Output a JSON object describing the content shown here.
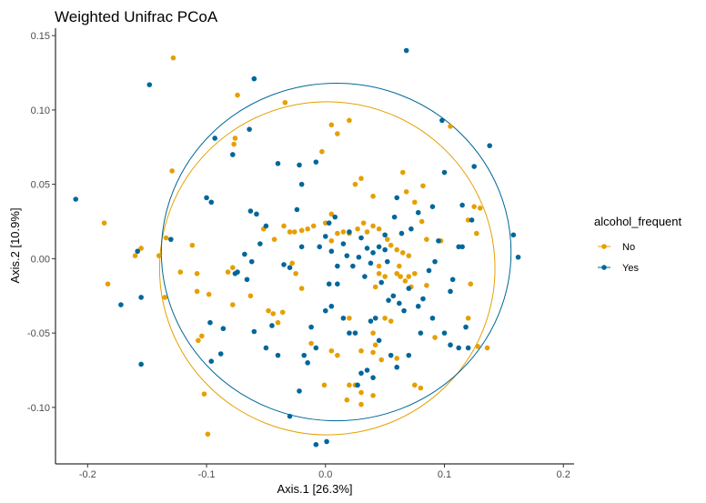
{
  "chart_data": {
    "type": "scatter",
    "title": "Weighted Unifrac PCoA",
    "xlabel": "Axis.1 [26.3%]",
    "ylabel": "Axis.2 [10.9%]",
    "xlim": [
      -0.227,
      0.209
    ],
    "ylim": [
      -0.138,
      0.155
    ],
    "xticks": [
      -0.2,
      -0.1,
      0.0,
      0.1,
      0.2
    ],
    "xtick_labels": [
      "-0.2",
      "-0.1",
      "0.0",
      "0.1",
      "0.2"
    ],
    "yticks": [
      -0.1,
      -0.05,
      0.0,
      0.05,
      0.1,
      0.15
    ],
    "ytick_labels": [
      "-0.10",
      "-0.05",
      "0.00",
      "0.05",
      "0.10",
      "0.15"
    ],
    "grid": false,
    "legend": {
      "title": "alcohol_frequent",
      "position": "right"
    },
    "series": [
      {
        "name": "No",
        "color": "#E69F00",
        "ellipse": {
          "cx": 0.0015,
          "cy": -0.0065,
          "rx": 0.141,
          "ry": 0.112
        },
        "points": [
          [
            -0.128,
            0.135
          ],
          [
            -0.074,
            0.11
          ],
          [
            -0.112,
            0.009
          ],
          [
            -0.183,
            -0.017
          ],
          [
            -0.186,
            0.024
          ],
          [
            -0.129,
            0.059
          ],
          [
            -0.076,
            0.081
          ],
          [
            -0.077,
            0.077
          ],
          [
            -0.034,
            0.105
          ],
          [
            -0.122,
            -0.009
          ],
          [
            -0.108,
            -0.01
          ],
          [
            -0.108,
            -0.022
          ],
          [
            -0.098,
            -0.024
          ],
          [
            -0.104,
            -0.052
          ],
          [
            -0.16,
            0.002
          ],
          [
            -0.155,
            0.007
          ],
          [
            -0.14,
            0.002
          ],
          [
            -0.134,
            0.014
          ],
          [
            -0.135,
            -0.026
          ],
          [
            -0.107,
            -0.055
          ],
          [
            -0.102,
            -0.091
          ],
          [
            -0.099,
            -0.118
          ],
          [
            -0.078,
            -0.006
          ],
          [
            -0.082,
            -0.009
          ],
          [
            -0.078,
            -0.031
          ],
          [
            -0.063,
            -0.025
          ],
          [
            -0.052,
            0.02
          ],
          [
            -0.043,
            0.013
          ],
          [
            -0.035,
            0.022
          ],
          [
            -0.03,
            0.018
          ],
          [
            -0.026,
            0.018
          ],
          [
            -0.02,
            0.019
          ],
          [
            -0.015,
            0.02
          ],
          [
            -0.01,
            0.022
          ],
          [
            0.005,
            0.03
          ],
          [
            0.0,
            0.024
          ],
          [
            -0.028,
            -0.003
          ],
          [
            -0.025,
            -0.01
          ],
          [
            -0.02,
            -0.02
          ],
          [
            -0.048,
            -0.035
          ],
          [
            -0.044,
            -0.037
          ],
          [
            -0.036,
            -0.036
          ],
          [
            -0.04,
            -0.043
          ],
          [
            -0.012,
            -0.057
          ],
          [
            0.005,
            -0.062
          ],
          [
            0.01,
            -0.065
          ],
          [
            0.02,
            -0.04
          ],
          [
            0.025,
            -0.085
          ],
          [
            0.02,
            -0.085
          ],
          [
            0.03,
            -0.062
          ],
          [
            -0.001,
            -0.085
          ],
          [
            0.03,
            -0.09
          ],
          [
            0.018,
            -0.095
          ],
          [
            0.03,
            -0.098
          ],
          [
            0.04,
            -0.092
          ],
          [
            0.04,
            -0.063
          ],
          [
            0.047,
            -0.068
          ],
          [
            0.042,
            -0.058
          ],
          [
            0.005,
            0.09
          ],
          [
            0.01,
            0.084
          ],
          [
            -0.003,
            0.072
          ],
          [
            0.02,
            0.093
          ],
          [
            0.005,
            0.012
          ],
          [
            0.01,
            0.017
          ],
          [
            0.015,
            0.018
          ],
          [
            0.02,
            0.017
          ],
          [
            0.027,
            0.02
          ],
          [
            0.032,
            0.024
          ],
          [
            0.035,
            0.018
          ],
          [
            0.04,
            0.022
          ],
          [
            0.045,
            0.02
          ],
          [
            0.052,
            0.013
          ],
          [
            0.055,
            0.009
          ],
          [
            0.06,
            0.006
          ],
          [
            0.065,
            0.004
          ],
          [
            0.07,
            0.002
          ],
          [
            0.062,
            -0.005
          ],
          [
            0.06,
            -0.01
          ],
          [
            0.063,
            -0.012
          ],
          [
            0.067,
            -0.015
          ],
          [
            0.07,
            -0.012
          ],
          [
            0.072,
            -0.019
          ],
          [
            0.075,
            -0.01
          ],
          [
            0.05,
            -0.04
          ],
          [
            0.055,
            -0.042
          ],
          [
            0.04,
            -0.05
          ],
          [
            0.06,
            -0.067
          ],
          [
            0.075,
            -0.085
          ],
          [
            0.08,
            -0.087
          ],
          [
            0.092,
            -0.053
          ],
          [
            0.085,
            -0.018
          ],
          [
            0.03,
            0.054
          ],
          [
            0.025,
            0.05
          ],
          [
            0.04,
            0.042
          ],
          [
            0.065,
            0.058
          ],
          [
            0.068,
            0.045
          ],
          [
            0.075,
            0.038
          ],
          [
            0.082,
            0.049
          ],
          [
            0.085,
            0.013
          ],
          [
            0.097,
            0.012
          ],
          [
            0.081,
            0.025
          ],
          [
            0.105,
            0.089
          ],
          [
            0.12,
            0.026
          ],
          [
            0.127,
            0.017
          ],
          [
            0.13,
            0.034
          ],
          [
            0.122,
            -0.017
          ],
          [
            0.12,
            -0.04
          ],
          [
            0.128,
            -0.059
          ],
          [
            0.136,
            -0.06
          ],
          [
            0.125,
            0.035
          ],
          [
            0.045,
            -0.005
          ],
          [
            0.045,
            -0.01
          ],
          [
            0.042,
            -0.019
          ],
          [
            0.05,
            -0.012
          ]
        ]
      },
      {
        "name": "Yes",
        "color": "#00679A",
        "ellipse": {
          "cx": 0.009,
          "cy": 0.0045,
          "rx": 0.147,
          "ry": 0.1135
        },
        "points": [
          [
            -0.21,
            0.04
          ],
          [
            -0.148,
            0.117
          ],
          [
            -0.172,
            -0.031
          ],
          [
            -0.155,
            -0.071
          ],
          [
            -0.158,
            0.005
          ],
          [
            -0.155,
            -0.026
          ],
          [
            -0.13,
            0.013
          ],
          [
            -0.093,
            0.081
          ],
          [
            -0.1,
            0.041
          ],
          [
            -0.096,
            0.038
          ],
          [
            -0.078,
            0.07
          ],
          [
            -0.06,
            0.121
          ],
          [
            -0.064,
            0.087
          ],
          [
            -0.097,
            -0.043
          ],
          [
            -0.096,
            -0.069
          ],
          [
            -0.086,
            -0.047
          ],
          [
            -0.088,
            -0.064
          ],
          [
            -0.076,
            -0.01
          ],
          [
            -0.074,
            -0.009
          ],
          [
            -0.066,
            -0.014
          ],
          [
            -0.06,
            -0.049
          ],
          [
            -0.068,
            0.003
          ],
          [
            -0.045,
            -0.045
          ],
          [
            -0.04,
            -0.065
          ],
          [
            -0.05,
            -0.06
          ],
          [
            -0.035,
            -0.004
          ],
          [
            -0.03,
            -0.006
          ],
          [
            -0.024,
            0.033
          ],
          [
            -0.02,
            0.008
          ],
          [
            -0.022,
            0.063
          ],
          [
            -0.02,
            0.05
          ],
          [
            -0.008,
            0.065
          ],
          [
            -0.012,
            -0.046
          ],
          [
            -0.008,
            -0.06
          ],
          [
            -0.015,
            -0.07
          ],
          [
            -0.018,
            -0.065
          ],
          [
            -0.022,
            -0.089
          ],
          [
            -0.03,
            -0.106
          ],
          [
            -0.008,
            -0.125
          ],
          [
            0.001,
            -0.123
          ],
          [
            0.003,
            -0.017
          ],
          [
            0.0,
            -0.035
          ],
          [
            0.005,
            -0.032
          ],
          [
            0.01,
            -0.017
          ],
          [
            0.015,
            -0.04
          ],
          [
            0.02,
            -0.05
          ],
          [
            0.025,
            -0.05
          ],
          [
            0.03,
            -0.077
          ],
          [
            0.027,
            -0.085
          ],
          [
            0.035,
            -0.075
          ],
          [
            0.04,
            -0.08
          ],
          [
            0.042,
            -0.04
          ],
          [
            0.038,
            -0.042
          ],
          [
            0.045,
            -0.055
          ],
          [
            0.055,
            -0.065
          ],
          [
            0.06,
            -0.073
          ],
          [
            0.07,
            -0.065
          ],
          [
            0.08,
            -0.05
          ],
          [
            0.09,
            -0.04
          ],
          [
            0.1,
            -0.05
          ],
          [
            0.105,
            -0.058
          ],
          [
            0.112,
            -0.06
          ],
          [
            0.118,
            -0.046
          ],
          [
            0.12,
            -0.06
          ],
          [
            0.107,
            -0.014
          ],
          [
            0.105,
            -0.022
          ],
          [
            0.112,
            0.008
          ],
          [
            0.115,
            0.008
          ],
          [
            0.123,
            0.026
          ],
          [
            0.125,
            0.062
          ],
          [
            0.138,
            0.076
          ],
          [
            0.098,
            0.093
          ],
          [
            0.068,
            0.14
          ],
          [
            0.09,
            0.035
          ],
          [
            0.078,
            0.031
          ],
          [
            0.06,
            0.041
          ],
          [
            0.058,
            0.028
          ],
          [
            0.05,
            0.016
          ],
          [
            0.045,
            0.008
          ],
          [
            0.04,
            0.004
          ],
          [
            0.035,
            0.007
          ],
          [
            0.03,
            0.014
          ],
          [
            0.02,
            0.018
          ],
          [
            0.015,
            0.01
          ],
          [
            0.01,
            -0.005
          ],
          [
            0.005,
            0.005
          ],
          [
            -0.005,
            0.008
          ],
          [
            0.0,
            0.015
          ],
          [
            0.003,
            0.024
          ],
          [
            0.008,
            0.028
          ],
          [
            0.018,
            0.002
          ],
          [
            0.023,
            -0.005
          ],
          [
            0.028,
            0.001
          ],
          [
            0.033,
            -0.012
          ],
          [
            0.038,
            -0.003
          ],
          [
            0.052,
            -0.002
          ],
          [
            0.057,
            -0.025
          ],
          [
            0.062,
            -0.03
          ],
          [
            0.066,
            -0.035
          ],
          [
            0.07,
            -0.02
          ],
          [
            0.078,
            -0.032
          ],
          [
            0.082,
            -0.027
          ],
          [
            0.087,
            -0.008
          ],
          [
            0.092,
            -0.002
          ],
          [
            0.095,
            0.012
          ],
          [
            0.072,
            0.02
          ],
          [
            0.064,
            0.017
          ],
          [
            0.158,
            0.016
          ],
          [
            0.162,
            0.001
          ],
          [
            0.115,
            0.036
          ],
          [
            0.1,
            0.058
          ],
          [
            -0.04,
            0.064
          ],
          [
            -0.05,
            0.022
          ],
          [
            -0.055,
            0.01
          ],
          [
            -0.062,
            -0.002
          ],
          [
            -0.063,
            0.032
          ],
          [
            -0.058,
            0.03
          ],
          [
            0.05,
            0.006
          ],
          [
            0.047,
            -0.016
          ],
          [
            0.053,
            -0.028
          ]
        ]
      }
    ]
  }
}
